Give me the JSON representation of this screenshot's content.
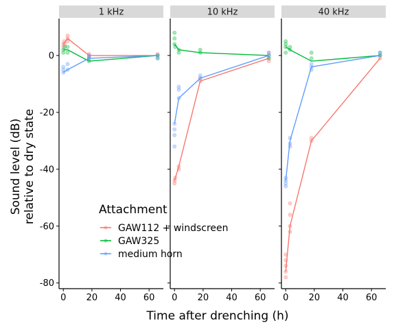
{
  "chart_data": {
    "type": "line",
    "xlabel": "Time after drenching (h)",
    "ylabel_line1": "Sound level (dB)",
    "ylabel_line2": "relative to dry state",
    "xlim": [
      -3,
      70
    ],
    "ylim": [
      -82,
      13
    ],
    "x_ticks": [
      0,
      20,
      40,
      60
    ],
    "y_ticks": [
      0,
      -20,
      -40,
      -60,
      -80
    ],
    "grid": false,
    "facets": [
      "1 kHz",
      "10 kHz",
      "40 kHz"
    ],
    "legend": {
      "title": "Attachment",
      "placement": "inside-left-of-first-panel",
      "entries": [
        "GAW112 + windscreen",
        "GAW325",
        "medium horn"
      ]
    },
    "colors": {
      "GAW112 + windscreen": "#F8766D",
      "GAW325": "#00BA38",
      "medium horn": "#619CFF",
      "strip": "#D9D9D9"
    },
    "series": [
      {
        "name": "GAW112 + windscreen",
        "panels": [
          {
            "facet": "1 kHz",
            "line": [
              [
                0,
                4
              ],
              [
                3,
                6
              ],
              [
                18,
                0
              ],
              [
                66,
                0
              ]
            ],
            "points": [
              [
                0,
                3
              ],
              [
                0,
                4
              ],
              [
                0.5,
                5
              ],
              [
                1,
                4
              ],
              [
                3,
                5
              ],
              [
                3,
                7
              ],
              [
                3,
                6
              ],
              [
                18,
                0
              ],
              [
                18,
                -0.5
              ],
              [
                18,
                0.5
              ],
              [
                66,
                0
              ],
              [
                66,
                0.5
              ]
            ]
          },
          {
            "facet": "10 kHz",
            "line": [
              [
                0,
                -44
              ],
              [
                3,
                -39
              ],
              [
                18,
                -9
              ],
              [
                66,
                -1
              ]
            ],
            "points": [
              [
                0,
                -45
              ],
              [
                0,
                -44
              ],
              [
                0.5,
                -43
              ],
              [
                3,
                -39
              ],
              [
                3,
                -40
              ],
              [
                18,
                -8
              ],
              [
                18,
                -9
              ],
              [
                66,
                -1
              ],
              [
                66,
                -2
              ],
              [
                66,
                1
              ]
            ]
          },
          {
            "facet": "40 kHz",
            "line": [
              [
                0,
                -76
              ],
              [
                3,
                -60
              ],
              [
                18,
                -30
              ],
              [
                66,
                -1
              ]
            ],
            "points": [
              [
                0,
                -70
              ],
              [
                0,
                -72
              ],
              [
                0,
                -74
              ],
              [
                0,
                -76
              ],
              [
                0,
                -78
              ],
              [
                3,
                -52
              ],
              [
                3,
                -56
              ],
              [
                3,
                -60
              ],
              [
                3,
                -62
              ],
              [
                18,
                -29
              ],
              [
                18,
                -30
              ],
              [
                66,
                0
              ],
              [
                66,
                -1
              ]
            ]
          }
        ]
      },
      {
        "name": "GAW325",
        "panels": [
          {
            "facet": "1 kHz",
            "line": [
              [
                0,
                2
              ],
              [
                3,
                2
              ],
              [
                18,
                -2
              ],
              [
                66,
                0
              ]
            ],
            "points": [
              [
                0,
                1
              ],
              [
                0,
                2
              ],
              [
                1,
                3
              ],
              [
                3,
                1
              ],
              [
                3,
                3
              ],
              [
                18,
                -2
              ],
              [
                18,
                -1
              ],
              [
                66,
                0
              ],
              [
                66,
                -1
              ]
            ]
          },
          {
            "facet": "10 kHz",
            "line": [
              [
                0,
                4
              ],
              [
                3,
                2
              ],
              [
                18,
                1
              ],
              [
                66,
                0
              ]
            ],
            "points": [
              [
                0,
                8
              ],
              [
                0,
                6
              ],
              [
                0,
                4
              ],
              [
                0.5,
                3
              ],
              [
                3,
                2
              ],
              [
                3,
                1
              ],
              [
                18,
                1
              ],
              [
                18,
                2
              ],
              [
                66,
                0
              ],
              [
                66,
                -1
              ]
            ]
          },
          {
            "facet": "40 kHz",
            "line": [
              [
                0,
                3
              ],
              [
                3,
                2
              ],
              [
                18,
                -2
              ],
              [
                66,
                0
              ]
            ],
            "points": [
              [
                0,
                5
              ],
              [
                0,
                4
              ],
              [
                0,
                3
              ],
              [
                0,
                1
              ],
              [
                3,
                2
              ],
              [
                3,
                3
              ],
              [
                18,
                -1
              ],
              [
                18,
                1
              ],
              [
                66,
                0
              ],
              [
                66,
                1
              ]
            ]
          }
        ]
      },
      {
        "name": "medium horn",
        "panels": [
          {
            "facet": "1 kHz",
            "line": [
              [
                0,
                -6
              ],
              [
                3,
                -5
              ],
              [
                18,
                -1
              ],
              [
                66,
                0
              ]
            ],
            "points": [
              [
                0,
                -5
              ],
              [
                0,
                -6
              ],
              [
                0,
                -4
              ],
              [
                3,
                -5
              ],
              [
                3,
                -3
              ],
              [
                18,
                -1
              ],
              [
                18,
                0
              ],
              [
                66,
                0
              ],
              [
                66,
                -1
              ]
            ]
          },
          {
            "facet": "10 kHz",
            "line": [
              [
                0,
                -24
              ],
              [
                3,
                -15
              ],
              [
                18,
                -8
              ],
              [
                66,
                0
              ]
            ],
            "points": [
              [
                0,
                -24
              ],
              [
                0,
                -26
              ],
              [
                0,
                -28
              ],
              [
                0,
                -32
              ],
              [
                3,
                -15
              ],
              [
                3,
                -12
              ],
              [
                3,
                -11
              ],
              [
                18,
                -7
              ],
              [
                18,
                -8
              ],
              [
                66,
                0
              ],
              [
                66,
                1
              ]
            ]
          },
          {
            "facet": "40 kHz",
            "line": [
              [
                0,
                -44
              ],
              [
                3,
                -30
              ],
              [
                18,
                -4
              ],
              [
                66,
                0
              ]
            ],
            "points": [
              [
                0,
                -43
              ],
              [
                0,
                -44
              ],
              [
                0,
                -45
              ],
              [
                0,
                -46
              ],
              [
                3,
                -29
              ],
              [
                3,
                -31
              ],
              [
                3,
                -32
              ],
              [
                18,
                -3
              ],
              [
                18,
                -4
              ],
              [
                18,
                -5
              ],
              [
                66,
                0
              ],
              [
                66,
                1
              ]
            ]
          }
        ]
      }
    ]
  }
}
